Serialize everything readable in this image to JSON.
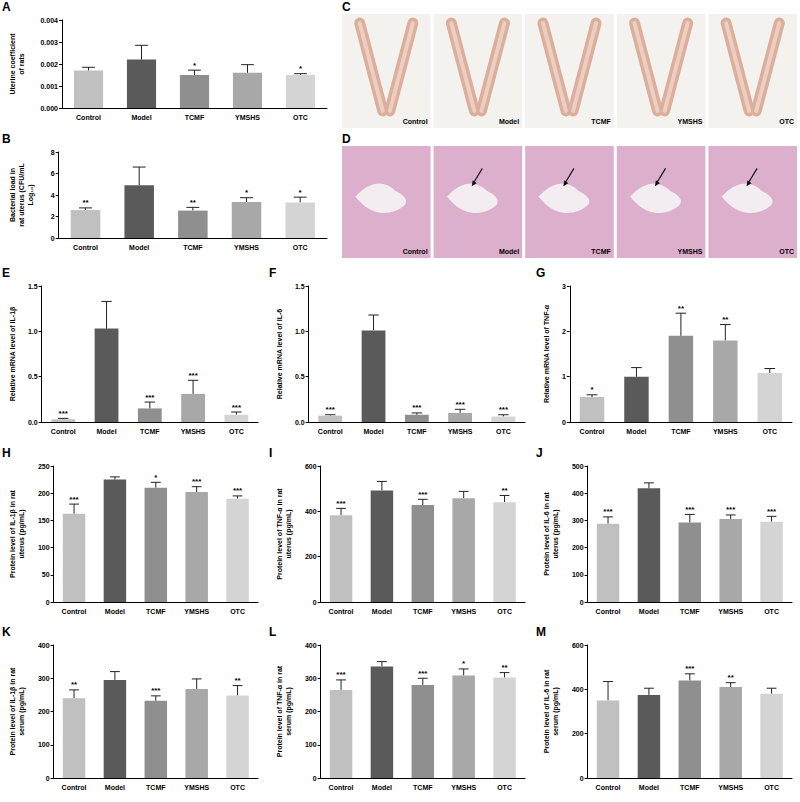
{
  "chart_data": [
    {
      "type": "bar",
      "panel_label": "A",
      "y_label": "Uterine coefficient of rats",
      "categories": [
        "Control",
        "Model",
        "TCMF",
        "YMSHS",
        "OTC"
      ],
      "values": [
        0.0017,
        0.0022,
        0.0015,
        0.0016,
        0.0015
      ],
      "errors": [
        0.00015,
        0.00065,
        0.00022,
        0.00037,
        6e-05
      ],
      "significance": [
        null,
        null,
        "*",
        null,
        "*"
      ],
      "colors": [
        "#c0c0c0",
        "#5a5a5a",
        "#8f8f8f",
        "#a8a8a8",
        "#d4d4d4"
      ],
      "ylim": [
        0,
        0.004
      ],
      "yticks": [
        {
          "value": 0,
          "label": "0.000"
        },
        {
          "value": 0.001,
          "label": "0.001"
        },
        {
          "value": 0.002,
          "label": "0.002"
        },
        {
          "value": 0.003,
          "label": "0.003"
        },
        {
          "value": 0.004,
          "label": "0.004"
        }
      ],
      "grid": false
    },
    {
      "type": "bar",
      "panel_label": "B",
      "y_label": "Bacterial load in rat uterus (CFU/mL Log₁₀)",
      "categories": [
        "Control",
        "Model",
        "TCMF",
        "YMSHS",
        "OTC"
      ],
      "values": [
        2.6,
        4.9,
        2.55,
        3.35,
        3.3
      ],
      "errors": [
        0.2,
        1.7,
        0.3,
        0.4,
        0.5
      ],
      "significance": [
        "**",
        null,
        "**",
        "*",
        "*"
      ],
      "colors": [
        "#c0c0c0",
        "#5a5a5a",
        "#8f8f8f",
        "#a8a8a8",
        "#d4d4d4"
      ],
      "ylim": [
        0,
        8
      ],
      "yticks": [
        0,
        2,
        4,
        6,
        8
      ],
      "grid": false
    },
    {
      "type": "bar",
      "panel_label": "E",
      "y_label": "Relative mRNA level of IL-1β",
      "categories": [
        "Control",
        "Model",
        "TCMF",
        "YMSHS",
        "OTC"
      ],
      "values": [
        0.03,
        1.03,
        0.15,
        0.31,
        0.08
      ],
      "errors": [
        0.01,
        0.3,
        0.07,
        0.15,
        0.03
      ],
      "significance": [
        "***",
        null,
        "***",
        "***",
        "***"
      ],
      "colors": [
        "#c0c0c0",
        "#5a5a5a",
        "#8f8f8f",
        "#a8a8a8",
        "#d4d4d4"
      ],
      "ylim": [
        0,
        1.5
      ],
      "yticks": [
        {
          "value": 0,
          "label": "0.0"
        },
        0.5,
        {
          "value": 1,
          "label": "1.0"
        },
        1.5
      ],
      "grid": false
    },
    {
      "type": "bar",
      "panel_label": "F",
      "y_label": "Relative mRNA level of IL-6",
      "categories": [
        "Control",
        "Model",
        "TCMF",
        "YMSHS",
        "OTC"
      ],
      "values": [
        0.07,
        1.01,
        0.08,
        0.1,
        0.06
      ],
      "errors": [
        0.01,
        0.17,
        0.02,
        0.04,
        0.02
      ],
      "significance": [
        "***",
        null,
        "***",
        "***",
        "***"
      ],
      "colors": [
        "#c0c0c0",
        "#5a5a5a",
        "#8f8f8f",
        "#a8a8a8",
        "#d4d4d4"
      ],
      "ylim": [
        0,
        1.5
      ],
      "yticks": [
        {
          "value": 0,
          "label": "0.0"
        },
        0.5,
        {
          "value": 1,
          "label": "1.0"
        },
        1.5
      ],
      "grid": false
    },
    {
      "type": "bar",
      "panel_label": "G",
      "y_label": "Relative mRNA level of TNF-α",
      "categories": [
        "Control",
        "Model",
        "TCMF",
        "YMSHS",
        "OTC"
      ],
      "values": [
        0.55,
        1.0,
        1.9,
        1.8,
        1.08
      ],
      "errors": [
        0.05,
        0.2,
        0.5,
        0.35,
        0.1
      ],
      "significance": [
        "*",
        null,
        "**",
        "**",
        null
      ],
      "colors": [
        "#c0c0c0",
        "#5a5a5a",
        "#8f8f8f",
        "#a8a8a8",
        "#d4d4d4"
      ],
      "ylim": [
        0,
        3
      ],
      "yticks": [
        0,
        1,
        2,
        3
      ],
      "grid": false
    },
    {
      "type": "bar",
      "panel_label": "H",
      "y_label": "Protein level of IL-1β in rat uterus (pg/mL)",
      "categories": [
        "Control",
        "Model",
        "TCMF",
        "YMSHS",
        "OTC"
      ],
      "values": [
        162,
        225,
        210,
        202,
        190
      ],
      "errors": [
        18,
        5,
        10,
        10,
        5
      ],
      "significance": [
        "***",
        null,
        "*",
        "***",
        "***"
      ],
      "colors": [
        "#c0c0c0",
        "#5a5a5a",
        "#8f8f8f",
        "#a8a8a8",
        "#d4d4d4"
      ],
      "ylim": [
        0,
        250
      ],
      "yticks": [
        0,
        50,
        100,
        150,
        200,
        250
      ],
      "grid": false
    },
    {
      "type": "bar",
      "panel_label": "I",
      "y_label": "Protein level of TNF-α in rat uterus (pg/mL)",
      "categories": [
        "Control",
        "Model",
        "TCMF",
        "YMSHS",
        "OTC"
      ],
      "values": [
        383,
        492,
        428,
        458,
        440
      ],
      "errors": [
        30,
        40,
        25,
        30,
        30
      ],
      "significance": [
        "***",
        null,
        "***",
        null,
        "**"
      ],
      "colors": [
        "#c0c0c0",
        "#5a5a5a",
        "#8f8f8f",
        "#a8a8a8",
        "#d4d4d4"
      ],
      "ylim": [
        0,
        600
      ],
      "yticks": [
        0,
        200,
        400,
        600
      ],
      "grid": false
    },
    {
      "type": "bar",
      "panel_label": "J",
      "y_label": "Protein level of IL-6 in rat uterus (pg/mL)",
      "categories": [
        "Control",
        "Model",
        "TCMF",
        "YMSHS",
        "OTC"
      ],
      "values": [
        288,
        418,
        292,
        305,
        295
      ],
      "errors": [
        25,
        20,
        30,
        15,
        20
      ],
      "significance": [
        "***",
        null,
        "***",
        "***",
        "***"
      ],
      "colors": [
        "#c0c0c0",
        "#5a5a5a",
        "#8f8f8f",
        "#a8a8a8",
        "#d4d4d4"
      ],
      "ylim": [
        0,
        500
      ],
      "yticks": [
        0,
        100,
        200,
        300,
        400,
        500
      ],
      "grid": false
    },
    {
      "type": "bar",
      "panel_label": "K",
      "y_label": "Protein level of IL-1β in rat serum (pg/mL)",
      "categories": [
        "Control",
        "Model",
        "TCMF",
        "YMSHS",
        "OTC"
      ],
      "values": [
        240,
        295,
        232,
        268,
        248
      ],
      "errors": [
        25,
        25,
        15,
        30,
        30
      ],
      "significance": [
        "**",
        null,
        "***",
        null,
        "**"
      ],
      "colors": [
        "#c0c0c0",
        "#5a5a5a",
        "#8f8f8f",
        "#a8a8a8",
        "#d4d4d4"
      ],
      "ylim": [
        0,
        400
      ],
      "yticks": [
        0,
        100,
        200,
        300,
        400
      ],
      "grid": false
    },
    {
      "type": "bar",
      "panel_label": "L",
      "y_label": "Protein level of TNF-α in rat serum (pg/mL)",
      "categories": [
        "Control",
        "Model",
        "TCMF",
        "YMSHS",
        "OTC"
      ],
      "values": [
        265,
        335,
        280,
        308,
        302
      ],
      "errors": [
        30,
        15,
        20,
        20,
        15
      ],
      "significance": [
        "***",
        null,
        "***",
        "*",
        "**"
      ],
      "colors": [
        "#c0c0c0",
        "#5a5a5a",
        "#8f8f8f",
        "#a8a8a8",
        "#d4d4d4"
      ],
      "ylim": [
        0,
        400
      ],
      "yticks": [
        0,
        100,
        200,
        300,
        400
      ],
      "grid": false
    },
    {
      "type": "bar",
      "panel_label": "M",
      "y_label": "Protein level of IL-6 in rat serum (pg/mL)",
      "categories": [
        "Control",
        "Model",
        "TCMF",
        "YMSHS",
        "OTC"
      ],
      "values": [
        350,
        375,
        440,
        410,
        380
      ],
      "errors": [
        85,
        30,
        30,
        20,
        25
      ],
      "significance": [
        null,
        null,
        "***",
        "**",
        null
      ],
      "colors": [
        "#c0c0c0",
        "#5a5a5a",
        "#8f8f8f",
        "#a8a8a8",
        "#d4d4d4"
      ],
      "ylim": [
        0,
        600
      ],
      "yticks": [
        0,
        200,
        400,
        600
      ],
      "grid": false
    }
  ],
  "photo_panels": [
    {
      "panel_label": "C",
      "kind": "uterus",
      "captions": [
        "Control",
        "Model",
        "TCMF",
        "YMSHS",
        "OTC"
      ]
    },
    {
      "panel_label": "D",
      "kind": "histology",
      "captions": [
        "Control",
        "Model",
        "TCMF",
        "YMSHS",
        "OTC"
      ]
    }
  ]
}
